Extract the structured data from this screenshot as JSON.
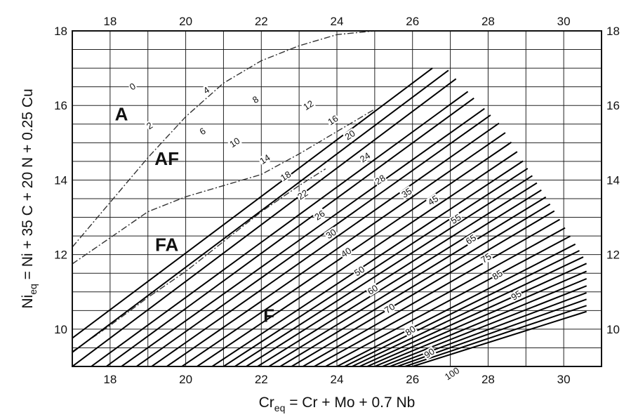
{
  "chart_data": {
    "type": "line",
    "title": "",
    "xlabel": "Cr_eq = Cr + Mo + 0.7 Nb",
    "ylabel": "Ni_eq = Ni + 35 C + 20 N + 0.25 Cu",
    "xlabel_parts": {
      "main": "Cr",
      "sub": "eq",
      "rest": " = Cr + Mo + 0.7 Nb"
    },
    "ylabel_parts": {
      "main": "Ni",
      "sub": "eq",
      "rest": " = Ni + 35 C + 20 N + 0.25 Cu"
    },
    "xlim": [
      17,
      31
    ],
    "ylim": [
      9,
      18
    ],
    "grid": true,
    "x_ticks": [
      "18",
      "20",
      "22",
      "24",
      "26",
      "28",
      "30"
    ],
    "x_tick_values": [
      18,
      20,
      22,
      24,
      26,
      28,
      30
    ],
    "y_ticks": [
      "10",
      "12",
      "14",
      "16",
      "18"
    ],
    "y_tick_values": [
      10,
      12,
      14,
      16,
      18
    ],
    "regions": [
      {
        "label": "A",
        "x": 18.3,
        "y": 15.6
      },
      {
        "label": "AF",
        "x": 19.5,
        "y": 14.4
      },
      {
        "label": "FA",
        "x": 19.5,
        "y": 12.1
      },
      {
        "label": "F",
        "x": 22.2,
        "y": 10.2
      }
    ],
    "phase_boundaries": [
      {
        "name": "",
        "style": "dash-dot",
        "points": [
          [
            17.0,
            12.2
          ],
          [
            18.0,
            13.4
          ],
          [
            19.0,
            14.6
          ],
          [
            20.0,
            15.7
          ],
          [
            21.0,
            16.6
          ],
          [
            22.0,
            17.2
          ],
          [
            23.0,
            17.6
          ],
          [
            24.0,
            17.9
          ],
          [
            25.0,
            18.0
          ]
        ]
      },
      {
        "name": "",
        "style": "dash-dot",
        "points": [
          [
            17.0,
            11.75
          ],
          [
            18.0,
            12.45
          ],
          [
            19.0,
            13.15
          ],
          [
            20.0,
            13.55
          ],
          [
            21.0,
            13.85
          ],
          [
            22.0,
            14.15
          ],
          [
            23.0,
            14.7
          ],
          [
            24.0,
            15.3
          ],
          [
            25.0,
            15.9
          ]
        ]
      },
      {
        "name": "",
        "style": "dash-dot",
        "points": [
          [
            17.0,
            9.4
          ],
          [
            18.0,
            10.1
          ],
          [
            19.0,
            10.85
          ],
          [
            20.0,
            11.55
          ],
          [
            21.0,
            12.35
          ],
          [
            22.0,
            13.15
          ],
          [
            23.0,
            13.85
          ],
          [
            23.7,
            14.3
          ]
        ]
      }
    ],
    "iso_ferrite_lines": {
      "top_limit_y": 17.0,
      "envelope": [
        [
          26.9,
          17.0
        ],
        [
          28.0,
          16.0
        ],
        [
          30.6,
          11.8
        ]
      ],
      "lines": [
        {
          "ferrite": "",
          "x_at_ymin": 16.0,
          "slope": 0.76
        },
        {
          "ferrite": "",
          "x_at_ymin": 16.5,
          "slope": 0.76
        },
        {
          "ferrite": "0",
          "x_at_ymin": 17.0,
          "slope": 0.76
        },
        {
          "ferrite": "",
          "x_at_ymin": 17.5,
          "slope": 0.74
        },
        {
          "ferrite": "2",
          "x_at_ymin": 17.9,
          "slope": 0.74
        },
        {
          "ferrite": "4",
          "x_at_ymin": 18.3,
          "slope": 0.72
        },
        {
          "ferrite": "6",
          "x_at_ymin": 18.7,
          "slope": 0.72
        },
        {
          "ferrite": "8",
          "x_at_ymin": 19.1,
          "slope": 0.71
        },
        {
          "ferrite": "10",
          "x_at_ymin": 19.5,
          "slope": 0.7
        },
        {
          "ferrite": "12",
          "x_at_ymin": 19.9,
          "slope": 0.69
        },
        {
          "ferrite": "14",
          "x_at_ymin": 20.3,
          "slope": 0.68
        },
        {
          "ferrite": "16",
          "x_at_ymin": 20.7,
          "slope": 0.67
        },
        {
          "ferrite": "18",
          "x_at_ymin": 21.0,
          "slope": 0.66
        },
        {
          "ferrite": "20",
          "x_at_ymin": 21.3,
          "slope": 0.65
        },
        {
          "ferrite": "22",
          "x_at_ymin": 21.6,
          "slope": 0.64
        },
        {
          "ferrite": "24",
          "x_at_ymin": 21.9,
          "slope": 0.63
        },
        {
          "ferrite": "26",
          "x_at_ymin": 22.2,
          "slope": 0.62
        },
        {
          "ferrite": "28",
          "x_at_ymin": 22.5,
          "slope": 0.61
        },
        {
          "ferrite": "30",
          "x_at_ymin": 22.8,
          "slope": 0.6
        },
        {
          "ferrite": "35",
          "x_at_ymin": 23.1,
          "slope": 0.58
        },
        {
          "ferrite": "40",
          "x_at_ymin": 23.4,
          "slope": 0.56
        },
        {
          "ferrite": "45",
          "x_at_ymin": 23.7,
          "slope": 0.54
        },
        {
          "ferrite": "50",
          "x_at_ymin": 24.0,
          "slope": 0.52
        },
        {
          "ferrite": "55",
          "x_at_ymin": 24.2,
          "slope": 0.5
        },
        {
          "ferrite": "60",
          "x_at_ymin": 24.4,
          "slope": 0.48
        },
        {
          "ferrite": "65",
          "x_at_ymin": 24.6,
          "slope": 0.46
        },
        {
          "ferrite": "70",
          "x_at_ymin": 24.8,
          "slope": 0.44
        },
        {
          "ferrite": "75",
          "x_at_ymin": 25.0,
          "slope": 0.42
        },
        {
          "ferrite": "80",
          "x_at_ymin": 25.2,
          "slope": 0.4
        },
        {
          "ferrite": "85",
          "x_at_ymin": 25.4,
          "slope": 0.38
        },
        {
          "ferrite": "90",
          "x_at_ymin": 25.6,
          "slope": 0.36
        },
        {
          "ferrite": "95",
          "x_at_ymin": 25.8,
          "slope": 0.34
        },
        {
          "ferrite": "100",
          "x_at_ymin": 26.0,
          "slope": 0.32
        }
      ]
    },
    "contour_labels": [
      {
        "text": "0",
        "x": 18.6,
        "y": 16.5
      },
      {
        "text": "2",
        "x": 19.05,
        "y": 15.45
      },
      {
        "text": "4",
        "x": 20.55,
        "y": 16.4
      },
      {
        "text": "6",
        "x": 20.45,
        "y": 15.3
      },
      {
        "text": "8",
        "x": 21.85,
        "y": 16.15
      },
      {
        "text": "10",
        "x": 21.3,
        "y": 15.0
      },
      {
        "text": "12",
        "x": 23.25,
        "y": 16.0
      },
      {
        "text": "14",
        "x": 22.1,
        "y": 14.55
      },
      {
        "text": "16",
        "x": 23.9,
        "y": 15.6
      },
      {
        "text": "18",
        "x": 22.65,
        "y": 14.1
      },
      {
        "text": "20",
        "x": 24.35,
        "y": 15.2
      },
      {
        "text": "22",
        "x": 23.1,
        "y": 13.6
      },
      {
        "text": "24",
        "x": 24.75,
        "y": 14.6
      },
      {
        "text": "26",
        "x": 23.55,
        "y": 13.05
      },
      {
        "text": "28",
        "x": 25.15,
        "y": 14.0
      },
      {
        "text": "30",
        "x": 23.85,
        "y": 12.55
      },
      {
        "text": "35",
        "x": 25.85,
        "y": 13.65
      },
      {
        "text": "40",
        "x": 24.25,
        "y": 12.05
      },
      {
        "text": "45",
        "x": 26.55,
        "y": 13.45
      },
      {
        "text": "50",
        "x": 24.6,
        "y": 11.55
      },
      {
        "text": "55",
        "x": 27.15,
        "y": 12.95
      },
      {
        "text": "60",
        "x": 24.95,
        "y": 11.05
      },
      {
        "text": "65",
        "x": 27.55,
        "y": 12.4
      },
      {
        "text": "70",
        "x": 25.4,
        "y": 10.55
      },
      {
        "text": "75",
        "x": 27.95,
        "y": 11.9
      },
      {
        "text": "80",
        "x": 25.95,
        "y": 9.95
      },
      {
        "text": "85",
        "x": 28.25,
        "y": 11.45
      },
      {
        "text": "90",
        "x": 26.45,
        "y": 9.35
      },
      {
        "text": "95",
        "x": 28.75,
        "y": 10.9
      },
      {
        "text": "100",
        "x": 27.05,
        "y": 8.8
      }
    ]
  }
}
